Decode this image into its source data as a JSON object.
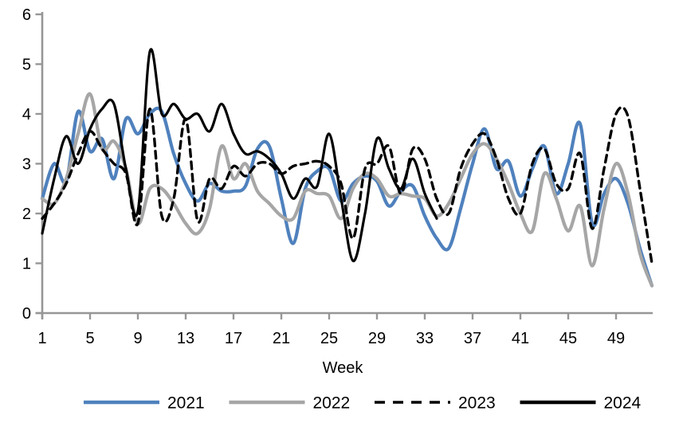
{
  "chart_data": {
    "type": "line",
    "title": "",
    "xlabel": "Week",
    "ylabel": "",
    "ylim": [
      0,
      6
    ],
    "xlim": [
      1,
      52
    ],
    "grid": false,
    "legend_position": "bottom",
    "yticks": [
      0,
      1,
      2,
      3,
      4,
      5,
      6
    ],
    "xticks": [
      1,
      5,
      9,
      13,
      17,
      21,
      25,
      29,
      33,
      37,
      41,
      45,
      49
    ],
    "axis_color": "#969696",
    "x": [
      1,
      2,
      3,
      4,
      5,
      6,
      7,
      8,
      9,
      10,
      11,
      12,
      13,
      14,
      15,
      16,
      17,
      18,
      19,
      20,
      21,
      22,
      23,
      24,
      25,
      26,
      27,
      28,
      29,
      30,
      31,
      32,
      33,
      34,
      35,
      36,
      37,
      38,
      39,
      40,
      41,
      42,
      43,
      44,
      45,
      46,
      47,
      48,
      49,
      50,
      51,
      52
    ],
    "series": [
      {
        "name": "2021",
        "color": "#4F81BD",
        "style": "solid",
        "width": 4.2,
        "values": [
          2.3,
          3.0,
          2.65,
          4.05,
          3.25,
          3.5,
          2.7,
          3.9,
          3.6,
          4.0,
          4.05,
          3.2,
          2.6,
          2.25,
          2.6,
          2.45,
          2.45,
          2.55,
          3.3,
          3.35,
          2.3,
          1.4,
          2.5,
          2.85,
          2.9,
          2.25,
          2.6,
          2.75,
          2.65,
          2.15,
          2.45,
          2.55,
          1.95,
          1.5,
          1.3,
          2.1,
          3.0,
          3.7,
          2.9,
          3.05,
          2.35,
          2.9,
          3.35,
          2.4,
          3.0,
          3.8,
          1.8,
          2.4,
          2.7,
          2.2,
          1.3,
          0.55
        ]
      },
      {
        "name": "2022",
        "color": "#A6A6A6",
        "style": "solid",
        "width": 4.2,
        "values": [
          2.3,
          2.2,
          2.7,
          3.6,
          4.4,
          3.3,
          3.45,
          2.9,
          1.8,
          2.5,
          2.5,
          2.2,
          1.8,
          1.6,
          2.1,
          3.35,
          2.7,
          3.0,
          2.45,
          2.2,
          1.95,
          1.9,
          2.45,
          2.4,
          2.35,
          1.9,
          2.5,
          2.8,
          2.7,
          2.35,
          2.4,
          2.35,
          2.3,
          1.95,
          2.2,
          2.7,
          3.2,
          3.4,
          3.1,
          2.6,
          2.0,
          1.65,
          2.8,
          2.3,
          1.65,
          2.15,
          0.95,
          2.1,
          3.0,
          2.4,
          1.2,
          0.55
        ]
      },
      {
        "name": "2023",
        "color": "#000000",
        "style": "dashed",
        "width": 3.4,
        "values": [
          1.9,
          2.2,
          2.6,
          3.2,
          3.65,
          3.3,
          3.0,
          2.8,
          1.8,
          4.1,
          1.95,
          2.3,
          3.9,
          1.85,
          2.7,
          2.5,
          2.95,
          2.75,
          3.0,
          3.0,
          2.8,
          2.95,
          3.0,
          3.05,
          2.95,
          2.6,
          1.5,
          2.9,
          3.0,
          3.35,
          2.4,
          3.3,
          3.1,
          2.3,
          2.0,
          2.9,
          3.4,
          3.6,
          3.1,
          2.3,
          2.0,
          3.0,
          3.3,
          2.6,
          2.5,
          3.2,
          1.7,
          2.9,
          4.0,
          3.95,
          2.5,
          1.0
        ]
      },
      {
        "name": "2024",
        "color": "#000000",
        "style": "solid",
        "width": 3.2,
        "values": [
          1.6,
          2.7,
          3.55,
          3.0,
          3.7,
          4.1,
          4.2,
          2.9,
          2.05,
          5.25,
          4.0,
          4.2,
          3.9,
          4.0,
          3.65,
          4.2,
          3.6,
          3.2,
          3.25,
          3.1,
          2.8,
          2.3,
          2.7,
          2.55,
          3.6,
          2.3,
          1.05,
          2.0,
          3.5,
          2.9,
          2.5,
          3.1,
          2.4,
          1.9
        ]
      }
    ]
  }
}
